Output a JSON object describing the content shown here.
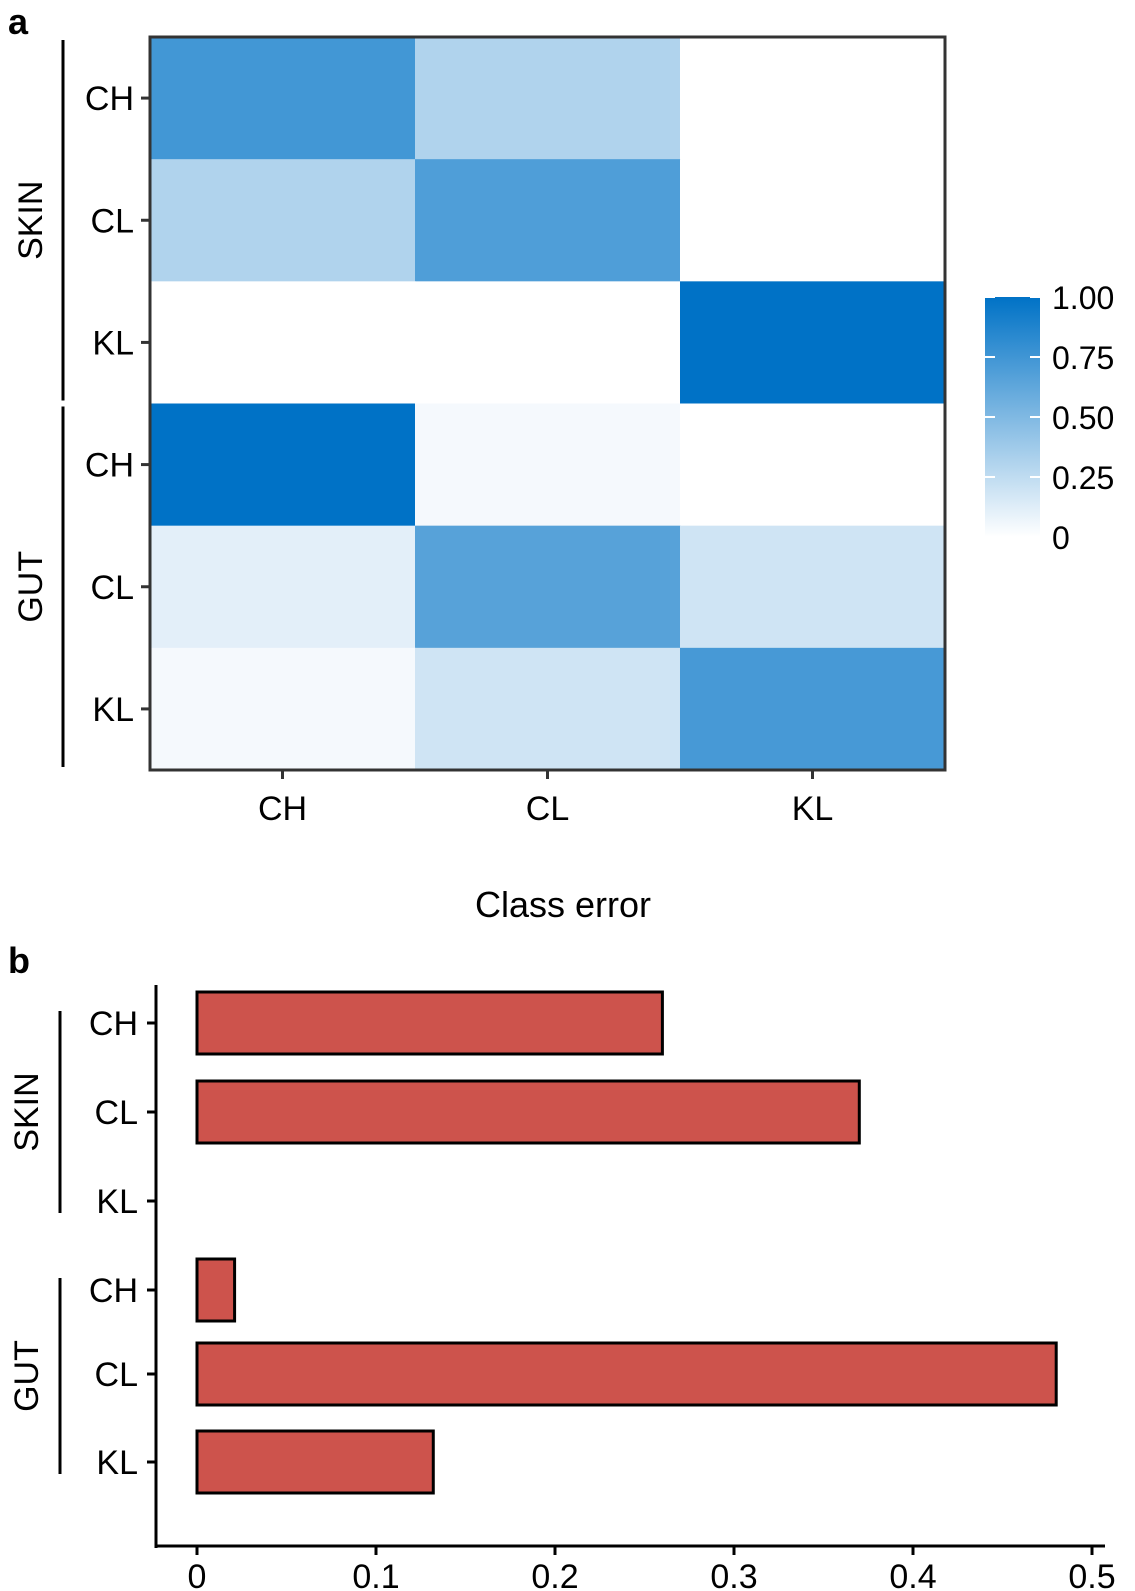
{
  "colors": {
    "heat_high": "#0072c6",
    "heat_low": "#ffffff",
    "bar_fill": "#cd534c",
    "bar_stroke": "#000000",
    "frame": "#333333"
  },
  "chart_data": [
    {
      "type": "heatmap",
      "panel_label": "a",
      "columns": [
        "CH",
        "CL",
        "KL"
      ],
      "row_groups": [
        {
          "name": "SKIN",
          "rows": [
            "CH",
            "CL",
            "KL"
          ]
        },
        {
          "name": "GUT",
          "rows": [
            "CH",
            "CL",
            "KL"
          ]
        }
      ],
      "values": [
        [
          0.74,
          0.31,
          0.0
        ],
        [
          0.31,
          0.69,
          0.0
        ],
        [
          0.0,
          0.0,
          1.0
        ],
        [
          1.0,
          0.04,
          0.0
        ],
        [
          0.11,
          0.66,
          0.19
        ],
        [
          0.04,
          0.19,
          0.72
        ]
      ],
      "legend": {
        "range": [
          0,
          1
        ],
        "ticks": [
          1.0,
          0.75,
          0.5,
          0.25,
          0
        ],
        "tick_labels": [
          "1.00",
          "0.75",
          "0.50",
          "0.25",
          "0"
        ],
        "placement": "right"
      },
      "xlabel": "",
      "ylabel": ""
    },
    {
      "type": "bar",
      "orientation": "horizontal",
      "panel_label": "b",
      "title": "Class error",
      "row_groups": [
        {
          "name": "SKIN",
          "rows": [
            "CH",
            "CL",
            "KL"
          ],
          "values": [
            0.26,
            0.37,
            0.0
          ]
        },
        {
          "name": "GUT",
          "rows": [
            "CH",
            "CL",
            "KL"
          ],
          "values": [
            0.021,
            0.48,
            0.132
          ]
        }
      ],
      "xlim": [
        0,
        0.5
      ],
      "xticks": [
        0,
        0.1,
        0.2,
        0.3,
        0.4,
        0.5
      ],
      "xtick_labels": [
        "0",
        "0.1",
        "0.2",
        "0.3",
        "0.4",
        "0.5"
      ],
      "xlabel": "",
      "ylabel": ""
    }
  ]
}
